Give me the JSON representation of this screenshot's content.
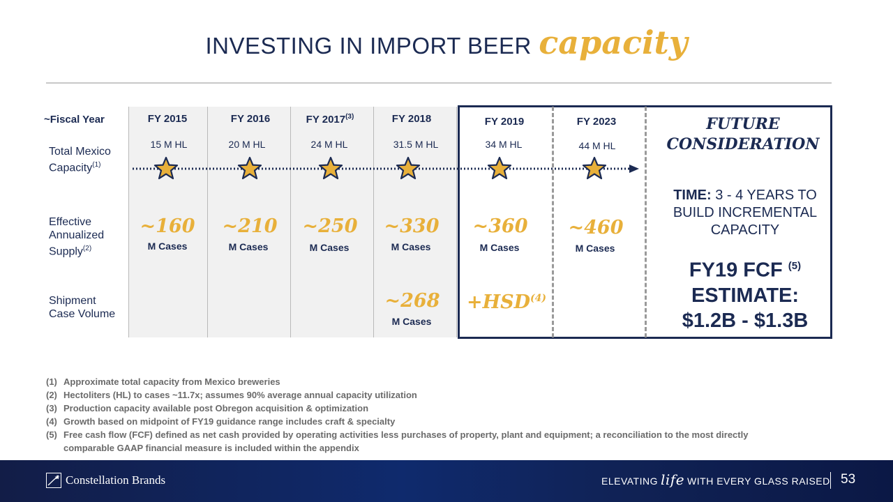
{
  "title": {
    "plain": "INVESTING IN IMPORT BEER",
    "accent": "capacity"
  },
  "rows": {
    "fiscal_year": "~Fiscal Year",
    "capacity_a": "Total Mexico",
    "capacity_b": "Capacity",
    "capacity_note": "(1)",
    "supply_a": "Effective",
    "supply_b": "Annualized",
    "supply_c": "Supply",
    "supply_note": "(2)",
    "shipment_a": "Shipment",
    "shipment_b": "Case Volume"
  },
  "years": [
    {
      "label": "FY 2015",
      "note": "",
      "capacity": "15 M HL",
      "supply": "~160",
      "supply_unit": "M Cases"
    },
    {
      "label": "FY 2016",
      "note": "",
      "capacity": "20 M HL",
      "supply": "~210",
      "supply_unit": "M Cases"
    },
    {
      "label": "FY 2017",
      "note": "(3)",
      "capacity": "24 M HL",
      "supply": "~250",
      "supply_unit": "M Cases"
    },
    {
      "label": "FY 2018",
      "note": "",
      "capacity": "31.5 M HL",
      "supply": "~330",
      "supply_unit": "M Cases"
    },
    {
      "label": "FY 2019",
      "note": "",
      "capacity": "34 M HL",
      "supply": "~360",
      "supply_unit": "M Cases"
    },
    {
      "label": "FY 2023",
      "note": "",
      "capacity": "44 M HL",
      "supply": "~460",
      "supply_unit": "M Cases"
    }
  ],
  "shipments": {
    "fy2018": {
      "value": "~268",
      "unit": "M Cases"
    },
    "fy2019": {
      "value": "+HSD",
      "note": "(4)"
    }
  },
  "future": {
    "heading_1": "FUTURE",
    "heading_2": "CONSIDERATION",
    "time_label": "TIME:",
    "time_text_1": "3 - 4 YEARS TO",
    "time_text_2": "BUILD INCREMENTAL",
    "time_text_3": "CAPACITY",
    "fcf_1": "FY19 FCF",
    "fcf_note": "(5)",
    "fcf_2": "ESTIMATE:",
    "fcf_3": "$1.2B - $1.3B"
  },
  "footnotes": [
    {
      "num": "(1)",
      "text": "Approximate total capacity from Mexico breweries"
    },
    {
      "num": "(2)",
      "text": "Hectoliters (HL) to cases ~11.7x; assumes 90% average annual capacity utilization"
    },
    {
      "num": "(3)",
      "text": "Production capacity available post Obregon acquisition & optimization"
    },
    {
      "num": "(4)",
      "text": "Growth based on midpoint of FY19 guidance range includes craft & specialty"
    },
    {
      "num": "(5)",
      "text": "Free cash flow (FCF) defined as net cash provided by operating activities less purchases of property, plant and equipment; a reconciliation to the most directly"
    },
    {
      "num": "",
      "text": "comparable GAAP financial measure is included within the appendix"
    }
  ],
  "footer": {
    "brand": "Constellation Brands",
    "tagline_pre": "ELEVATING",
    "tagline_life": "life",
    "tagline_post": "WITH EVERY GLASS RAISED",
    "page": "53"
  },
  "colors": {
    "navy": "#1b2a52",
    "gold": "#e8b03a",
    "column_bg": "#f1f1f1"
  },
  "icons": {
    "timeline_marker": "star-icon",
    "timeline_arrow": "arrow-right-icon",
    "logo": "constellation-star-icon"
  }
}
